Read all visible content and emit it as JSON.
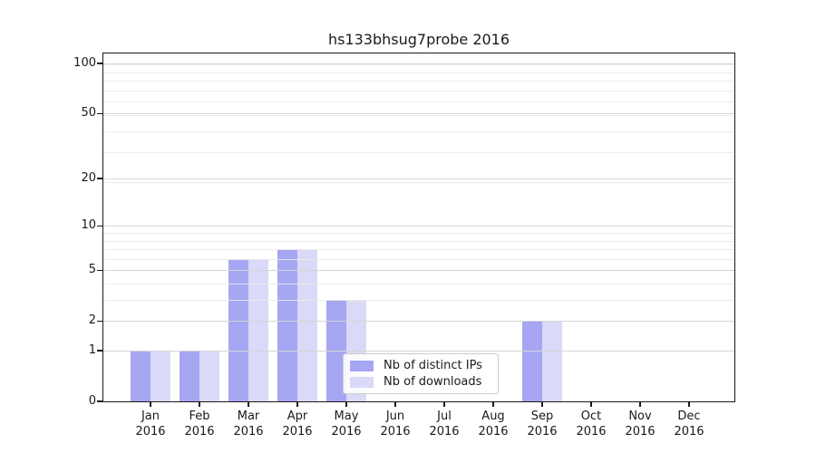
{
  "title": "hs133bhsug7probe 2016",
  "colors": {
    "axis": "#1a1a1a",
    "grid_major": "#cfcfcf",
    "grid_minor": "#eaeaea",
    "legend_border": "#cccccc",
    "distinct_ips": "#a6a6f3",
    "downloads": "#dadaf8"
  },
  "legend": {
    "items": [
      {
        "label": "Nb of distinct IPs",
        "color_key": "distinct_ips"
      },
      {
        "label": "Nb of downloads",
        "color_key": "downloads"
      }
    ]
  },
  "chart_data": {
    "type": "bar",
    "title": "hs133bhsug7probe 2016",
    "x": [
      "Jan",
      "Feb",
      "Mar",
      "Apr",
      "May",
      "Jun",
      "Jul",
      "Aug",
      "Sep",
      "Oct",
      "Nov",
      "Dec"
    ],
    "x_year": "2016",
    "series": [
      {
        "name": "Nb of distinct IPs",
        "color": "#a6a6f3",
        "values": [
          1,
          1,
          6,
          7,
          3,
          0,
          0,
          0,
          2,
          0,
          0,
          0
        ]
      },
      {
        "name": "Nb of downloads",
        "color": "#dadaf8",
        "values": [
          1,
          1,
          6,
          7,
          3,
          0,
          0,
          0,
          2,
          0,
          0,
          0
        ]
      }
    ],
    "yscale": "log1p",
    "y_ticks": [
      0,
      1,
      2,
      5,
      10,
      20,
      50,
      100
    ],
    "ylim": [
      0,
      115
    ],
    "grid": "both",
    "legend_position": "lower center"
  }
}
